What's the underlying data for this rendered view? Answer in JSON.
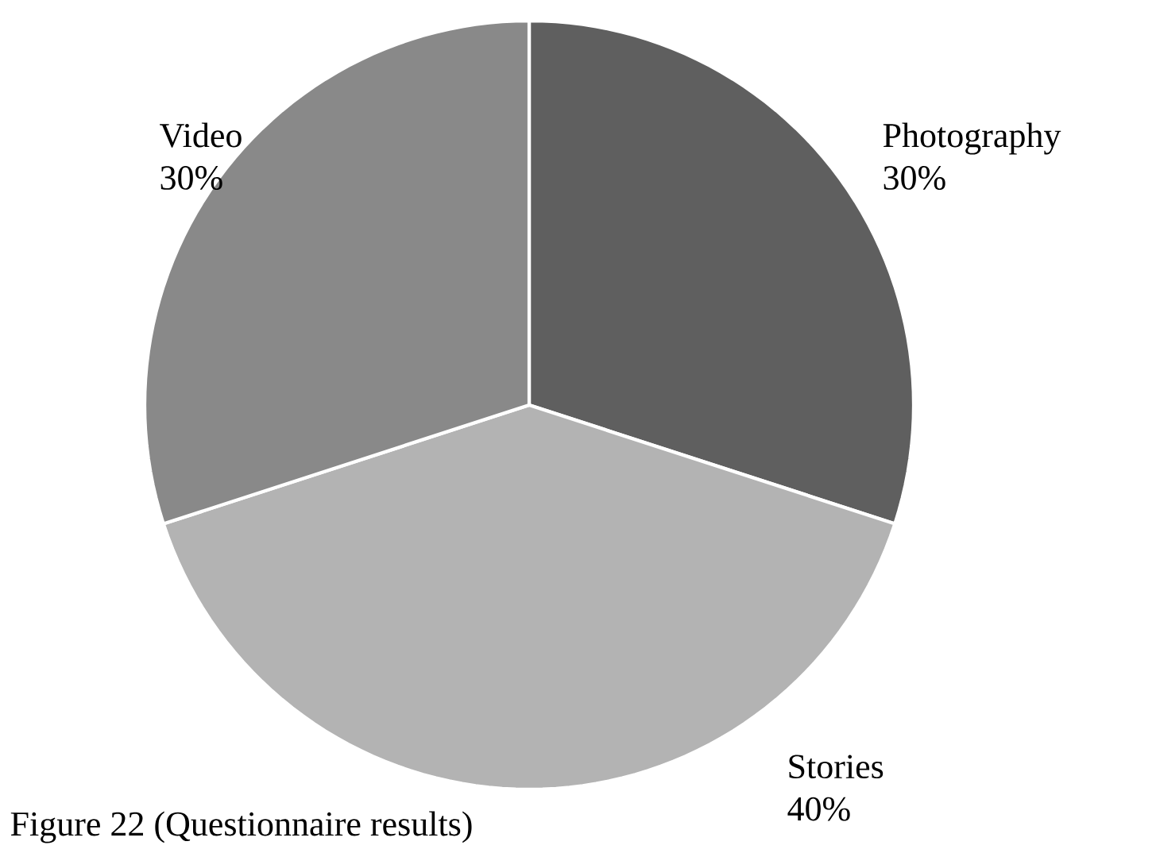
{
  "chart_data": {
    "type": "pie",
    "categories": [
      "Photography",
      "Stories",
      "Video"
    ],
    "values": [
      30,
      40,
      30
    ],
    "value_labels": [
      "30%",
      "40%",
      "30%"
    ],
    "colors": [
      "#5f5f5f",
      "#b3b3b3",
      "#898989"
    ],
    "annotations": [
      "Figure 22 (Questionnaire results)"
    ]
  }
}
